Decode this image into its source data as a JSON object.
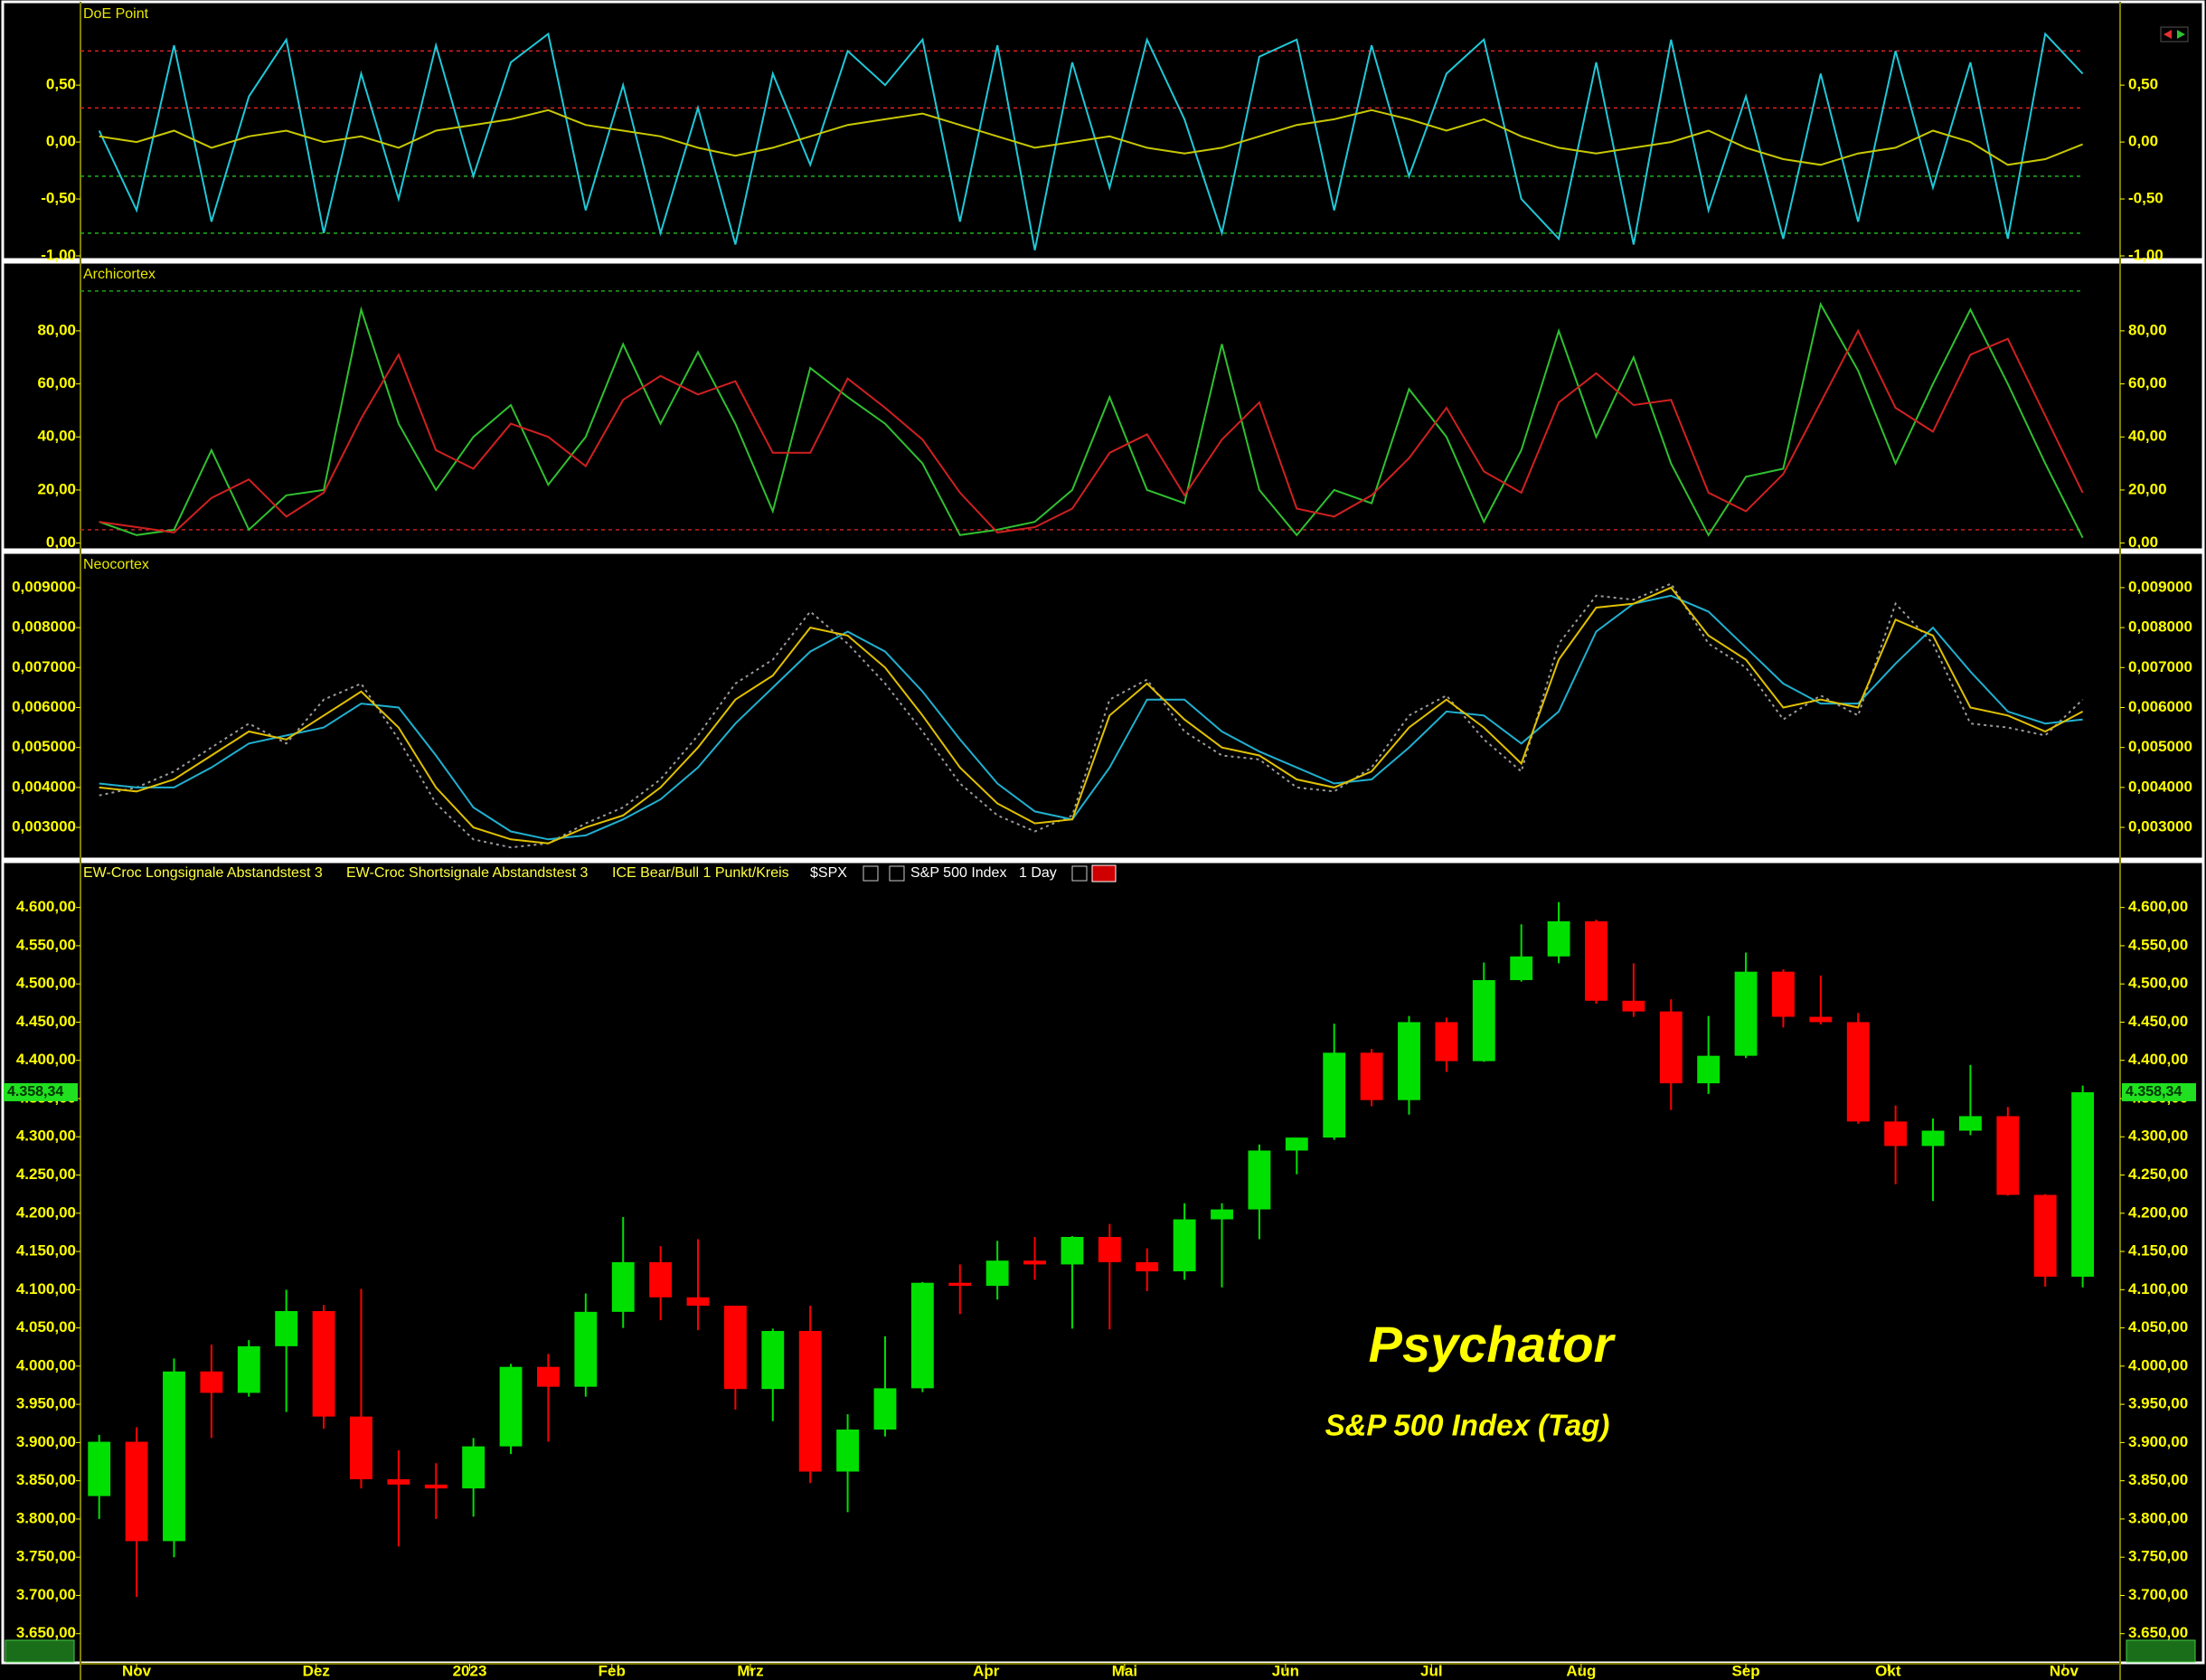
{
  "chart_data": [
    {
      "type": "line",
      "title": "DoE Point",
      "x": [
        0,
        1,
        2,
        3,
        4,
        5,
        6,
        7,
        8,
        9,
        10,
        11,
        12,
        13,
        14,
        15,
        16,
        17,
        18,
        19,
        20,
        21,
        22,
        23,
        24,
        25,
        26,
        27,
        28,
        29,
        30,
        31,
        32,
        33,
        34,
        35,
        36,
        37,
        38,
        39,
        40,
        41,
        42,
        43,
        44,
        45,
        46,
        47,
        48,
        49,
        50,
        51,
        52,
        53
      ],
      "xlim": [
        -0.5,
        54
      ],
      "ylim": [
        -1,
        1.2
      ],
      "yticks": [
        {
          "value": -1,
          "label": "-1,00"
        },
        {
          "value": -0.5,
          "label": "-0,50"
        },
        {
          "value": 0,
          "label": "0,00"
        },
        {
          "value": 0.5,
          "label": "0,50"
        }
      ],
      "levels": [
        {
          "value": 0.8,
          "color": "#e02020"
        },
        {
          "value": 0.3,
          "color": "#e02020"
        },
        {
          "value": -0.3,
          "color": "#20b020"
        },
        {
          "value": -0.8,
          "color": "#20b020"
        }
      ],
      "series": [
        {
          "color": "#20c8d8",
          "values": [
            0.1,
            -0.6,
            0.85,
            -0.7,
            0.4,
            0.9,
            -0.8,
            0.6,
            -0.5,
            0.85,
            -0.3,
            0.7,
            0.95,
            -0.6,
            0.5,
            -0.8,
            0.3,
            -0.9,
            0.6,
            -0.2,
            0.8,
            0.5,
            0.9,
            -0.7,
            0.85,
            -0.95,
            0.7,
            -0.4,
            0.9,
            0.2,
            -0.8,
            0.75,
            0.9,
            -0.6,
            0.85,
            -0.3,
            0.6,
            0.9,
            -0.5,
            -0.85,
            0.7,
            -0.9,
            0.9,
            -0.6,
            0.4,
            -0.85,
            0.6,
            -0.7,
            0.8,
            -0.4,
            0.7,
            -0.85,
            0.95,
            0.6
          ]
        },
        {
          "color": "#c8c800",
          "values": [
            0.05,
            0.0,
            0.1,
            -0.05,
            0.05,
            0.1,
            0.0,
            0.05,
            -0.05,
            0.1,
            0.15,
            0.2,
            0.28,
            0.15,
            0.1,
            0.05,
            -0.05,
            -0.12,
            -0.05,
            0.05,
            0.15,
            0.2,
            0.25,
            0.15,
            0.05,
            -0.05,
            0.0,
            0.05,
            -0.05,
            -0.1,
            -0.05,
            0.05,
            0.15,
            0.2,
            0.28,
            0.2,
            0.1,
            0.2,
            0.05,
            -0.05,
            -0.1,
            -0.05,
            0.0,
            0.1,
            -0.05,
            -0.15,
            -0.2,
            -0.1,
            -0.05,
            0.1,
            0.0,
            -0.2,
            -0.15,
            -0.02
          ]
        }
      ]
    },
    {
      "type": "line",
      "title": "Archicortex",
      "x": [
        0,
        1,
        2,
        3,
        4,
        5,
        6,
        7,
        8,
        9,
        10,
        11,
        12,
        13,
        14,
        15,
        16,
        17,
        18,
        19,
        20,
        21,
        22,
        23,
        24,
        25,
        26,
        27,
        28,
        29,
        30,
        31,
        32,
        33,
        34,
        35,
        36,
        37,
        38,
        39,
        40,
        41,
        42,
        43,
        44,
        45,
        46,
        47,
        48,
        49,
        50,
        51,
        52,
        53
      ],
      "xlim": [
        -0.5,
        54
      ],
      "ylim": [
        0,
        104.5
      ],
      "yticks": [
        {
          "value": 0,
          "label": "0,00"
        },
        {
          "value": 20,
          "label": "20,00"
        },
        {
          "value": 40,
          "label": "40,00"
        },
        {
          "value": 60,
          "label": "60,00"
        },
        {
          "value": 80,
          "label": "80,00"
        }
      ],
      "levels": [
        {
          "value": 95,
          "color": "#20a020"
        },
        {
          "value": 5,
          "color": "#c02020"
        }
      ],
      "series": [
        {
          "color": "#30c030",
          "values": [
            8,
            3,
            5,
            35,
            5,
            18,
            20,
            88,
            45,
            20,
            40,
            52,
            22,
            40,
            75,
            45,
            72,
            45,
            12,
            66,
            55,
            45,
            30,
            3,
            5,
            8,
            20,
            55,
            20,
            15,
            75,
            20,
            3,
            20,
            15,
            58,
            40,
            8,
            35,
            80,
            40,
            70,
            30,
            3,
            25,
            28,
            90,
            65,
            30,
            60,
            88,
            60,
            30,
            2
          ]
        },
        {
          "color": "#d02020",
          "values": [
            8,
            6,
            4,
            17,
            24,
            10,
            19,
            47,
            71,
            35,
            28,
            45,
            40,
            29,
            54,
            63,
            56,
            61,
            34,
            34,
            62,
            51,
            39,
            19,
            4,
            6,
            13,
            34,
            41,
            18,
            39,
            53,
            13,
            10,
            18,
            32,
            51,
            27,
            19,
            53,
            64,
            52,
            54,
            19,
            12,
            26,
            53,
            80,
            51,
            42,
            71,
            77,
            48,
            19
          ]
        }
      ]
    },
    {
      "type": "line",
      "title": "Neocortex",
      "x": [
        0,
        1,
        2,
        3,
        4,
        5,
        6,
        7,
        8,
        9,
        10,
        11,
        12,
        13,
        14,
        15,
        16,
        17,
        18,
        19,
        20,
        21,
        22,
        23,
        24,
        25,
        26,
        27,
        28,
        29,
        30,
        31,
        32,
        33,
        34,
        35,
        36,
        37,
        38,
        39,
        40,
        41,
        42,
        43,
        44,
        45,
        46,
        47,
        48,
        49,
        50,
        51,
        52,
        53
      ],
      "xlim": [
        -0.5,
        54
      ],
      "ylim": [
        0.0023,
        0.00979
      ],
      "yticks": [
        {
          "value": 0.003,
          "label": "0,003000"
        },
        {
          "value": 0.004,
          "label": "0,004000"
        },
        {
          "value": 0.005,
          "label": "0,005000"
        },
        {
          "value": 0.006,
          "label": "0,006000"
        },
        {
          "value": 0.007,
          "label": "0,007000"
        },
        {
          "value": 0.008,
          "label": "0,008000"
        },
        {
          "value": 0.009,
          "label": "0,009000"
        }
      ],
      "series": [
        {
          "color": "#9a9a9a",
          "dash": "dotted",
          "values": [
            0.0038,
            0.004,
            0.0044,
            0.005,
            0.0056,
            0.0051,
            0.0062,
            0.0066,
            0.0052,
            0.0036,
            0.0027,
            0.0025,
            0.0026,
            0.0031,
            0.0035,
            0.0042,
            0.0053,
            0.0066,
            0.0072,
            0.0084,
            0.0076,
            0.0066,
            0.0054,
            0.0041,
            0.0033,
            0.0029,
            0.0033,
            0.0062,
            0.0067,
            0.0054,
            0.0048,
            0.0047,
            0.004,
            0.0039,
            0.0045,
            0.0058,
            0.0063,
            0.0052,
            0.0044,
            0.0076,
            0.0088,
            0.0087,
            0.0091,
            0.0076,
            0.007,
            0.0057,
            0.0063,
            0.0058,
            0.0086,
            0.0076,
            0.0056,
            0.0055,
            0.0053,
            0.0062
          ]
        },
        {
          "color": "#20b0d0",
          "values": [
            0.0041,
            0.004,
            0.004,
            0.0045,
            0.0051,
            0.0053,
            0.0055,
            0.0061,
            0.006,
            0.0048,
            0.0035,
            0.0029,
            0.0027,
            0.0028,
            0.0032,
            0.0037,
            0.0045,
            0.0056,
            0.0065,
            0.0074,
            0.0079,
            0.0074,
            0.0064,
            0.0052,
            0.0041,
            0.0034,
            0.0032,
            0.0045,
            0.0062,
            0.0062,
            0.0054,
            0.0049,
            0.0045,
            0.0041,
            0.0042,
            0.005,
            0.0059,
            0.0058,
            0.0051,
            0.0059,
            0.0079,
            0.0086,
            0.0088,
            0.0084,
            0.0075,
            0.0066,
            0.0061,
            0.0061,
            0.0071,
            0.008,
            0.0069,
            0.0059,
            0.0056,
            0.0057
          ]
        },
        {
          "color": "#e0c000",
          "values": [
            0.004,
            0.0039,
            0.0042,
            0.0048,
            0.0054,
            0.0052,
            0.0058,
            0.0064,
            0.0055,
            0.004,
            0.003,
            0.0027,
            0.0026,
            0.003,
            0.0033,
            0.004,
            0.005,
            0.0062,
            0.0068,
            0.008,
            0.0078,
            0.007,
            0.0058,
            0.0045,
            0.0036,
            0.0031,
            0.0032,
            0.0058,
            0.0066,
            0.0057,
            0.005,
            0.0048,
            0.0042,
            0.004,
            0.0044,
            0.0055,
            0.0062,
            0.0055,
            0.0046,
            0.0072,
            0.0085,
            0.0086,
            0.009,
            0.0078,
            0.0072,
            0.006,
            0.0062,
            0.006,
            0.0082,
            0.0078,
            0.006,
            0.0058,
            0.0054,
            0.0059
          ]
        }
      ]
    },
    {
      "type": "candlestick",
      "title": "Psychator",
      "subtitle": "S&P 500 Index (Tag)",
      "indicators": [
        "EW-Croc Longsignale Abstandstest 3",
        "EW-Croc Shortsignale Abstandstest 3",
        "ICE Bear/Bull 1 Punkt/Kreis"
      ],
      "symbol": "$SPX",
      "name": "S&P 500 Index",
      "interval": "1 Day",
      "last_price_label": "4.358,34",
      "up_color": "#00e000",
      "down_color": "#ff0000",
      "x": [
        0,
        1,
        2,
        3,
        4,
        5,
        6,
        7,
        8,
        9,
        10,
        11,
        12,
        13,
        14,
        15,
        16,
        17,
        18,
        19,
        20,
        21,
        22,
        23,
        24,
        25,
        26,
        27,
        28,
        29,
        30,
        31,
        32,
        33,
        34,
        35,
        36,
        37,
        38,
        39,
        40,
        41,
        42,
        43,
        44,
        45,
        46,
        47,
        48,
        49,
        50,
        51,
        52,
        53
      ],
      "xlim": [
        -0.5,
        54
      ],
      "ylim": [
        3613,
        4654
      ],
      "xticks": [
        {
          "value": 1,
          "label": "Nov"
        },
        {
          "value": 5.8,
          "label": "Dez"
        },
        {
          "value": 9.9,
          "label": "2023"
        },
        {
          "value": 13.7,
          "label": "Feb"
        },
        {
          "value": 17.4,
          "label": "Mrz"
        },
        {
          "value": 23.7,
          "label": "Apr"
        },
        {
          "value": 27.4,
          "label": "Mai"
        },
        {
          "value": 31.7,
          "label": "Jun"
        },
        {
          "value": 35.6,
          "label": "Jul"
        },
        {
          "value": 39.6,
          "label": "Aug"
        },
        {
          "value": 44,
          "label": "Sep"
        },
        {
          "value": 47.8,
          "label": "Okt"
        },
        {
          "value": 52.5,
          "label": "Nov"
        }
      ],
      "yticks": [
        {
          "value": 3650,
          "label": "3.650,00"
        },
        {
          "value": 3700,
          "label": "3.700,00"
        },
        {
          "value": 3750,
          "label": "3.750,00"
        },
        {
          "value": 3800,
          "label": "3.800,00"
        },
        {
          "value": 3850,
          "label": "3.850,00"
        },
        {
          "value": 3900,
          "label": "3.900,00"
        },
        {
          "value": 3950,
          "label": "3.950,00"
        },
        {
          "value": 4000,
          "label": "4.000,00"
        },
        {
          "value": 4050,
          "label": "4.050,00"
        },
        {
          "value": 4100,
          "label": "4.100,00"
        },
        {
          "value": 4150,
          "label": "4.150,00"
        },
        {
          "value": 4200,
          "label": "4.200,00"
        },
        {
          "value": 4250,
          "label": "4.250,00"
        },
        {
          "value": 4300,
          "label": "4.300,00"
        },
        {
          "value": 4350,
          "label": "4.350,00"
        },
        {
          "value": 4400,
          "label": "4.400,00"
        },
        {
          "value": 4450,
          "label": "4.450,00"
        },
        {
          "value": 4500,
          "label": "4.500,00"
        },
        {
          "value": 4550,
          "label": "4.550,00"
        },
        {
          "value": 4600,
          "label": "4.600,00"
        }
      ],
      "open": [
        3830,
        3901,
        3771,
        3993,
        3965,
        4026,
        4072,
        3934,
        3852,
        3845,
        3840,
        3895,
        3999,
        3973,
        4071,
        4136,
        4090,
        4079,
        3970,
        4046,
        3862,
        3917,
        3971,
        4109,
        4105,
        4138,
        4133,
        4169,
        4136,
        4124,
        4192,
        4205,
        4282,
        4299,
        4410,
        4348,
        4450,
        4399,
        4505,
        4536,
        4582,
        4478,
        4464,
        4370,
        4406,
        4516,
        4457,
        4450,
        4320,
        4288,
        4308,
        4327,
        4224,
        4117
      ],
      "high": [
        3910,
        3920,
        4010,
        4028,
        4034,
        4100,
        4080,
        4101,
        3890,
        3873,
        3906,
        4003,
        4016,
        4095,
        4195,
        4157,
        4166,
        4079,
        4049,
        4079,
        3937,
        4039,
        4110,
        4133,
        4164,
        4169,
        4170,
        4186,
        4154,
        4213,
        4213,
        4290,
        4299,
        4448,
        4415,
        4458,
        4456,
        4528,
        4578,
        4607,
        4584,
        4527,
        4480,
        4458,
        4541,
        4519,
        4511,
        4462,
        4341,
        4324,
        4394,
        4339,
        4225,
        4367
      ],
      "low": [
        3800,
        3698,
        3750,
        3906,
        3960,
        3940,
        3918,
        3840,
        3764,
        3800,
        3803,
        3885,
        3901,
        3960,
        4050,
        4060,
        4047,
        3943,
        3928,
        3847,
        3809,
        3908,
        3966,
        4068,
        4087,
        4113,
        4049,
        4048,
        4098,
        4113,
        4103,
        4166,
        4251,
        4296,
        4340,
        4329,
        4385,
        4398,
        4503,
        4527,
        4474,
        4457,
        4335,
        4356,
        4403,
        4443,
        4447,
        4317,
        4238,
        4216,
        4302,
        4223,
        4104,
        4103
      ],
      "close": [
        3901,
        3771,
        3993,
        3965,
        4026,
        4072,
        3934,
        3852,
        3845,
        3840,
        3895,
        3999,
        3973,
        4071,
        4136,
        4090,
        4079,
        3970,
        4046,
        3862,
        3917,
        3971,
        4109,
        4105,
        4138,
        4133,
        4169,
        4136,
        4124,
        4192,
        4205,
        4282,
        4299,
        4410,
        4348,
        4450,
        4399,
        4505,
        4536,
        4582,
        4478,
        4464,
        4370,
        4406,
        4516,
        4457,
        4450,
        4320,
        4288,
        4308,
        4327,
        4224,
        4117,
        4358.34
      ]
    }
  ]
}
